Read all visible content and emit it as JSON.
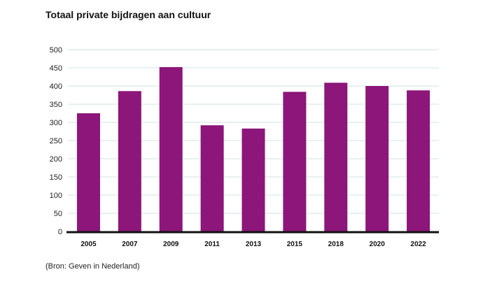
{
  "title": "Totaal private bijdragen aan cultuur",
  "source": "(Bron: Geven in Nederland)",
  "colors": {
    "bar": "#8c1679",
    "grid": "#cfe5e0",
    "axis": "#111111"
  },
  "chart_data": {
    "type": "bar",
    "title": "Totaal private bijdragen aan cultuur",
    "categories": [
      "2005",
      "2007",
      "2009",
      "2011",
      "2013",
      "2015",
      "2018",
      "2020",
      "2022"
    ],
    "values": [
      325,
      386,
      452,
      292,
      283,
      384,
      409,
      400,
      388
    ],
    "ylim": [
      0,
      500
    ],
    "yticks": [
      0,
      50,
      100,
      150,
      200,
      250,
      300,
      350,
      400,
      450,
      500
    ],
    "xlabel": "",
    "ylabel": "",
    "grid": true
  }
}
